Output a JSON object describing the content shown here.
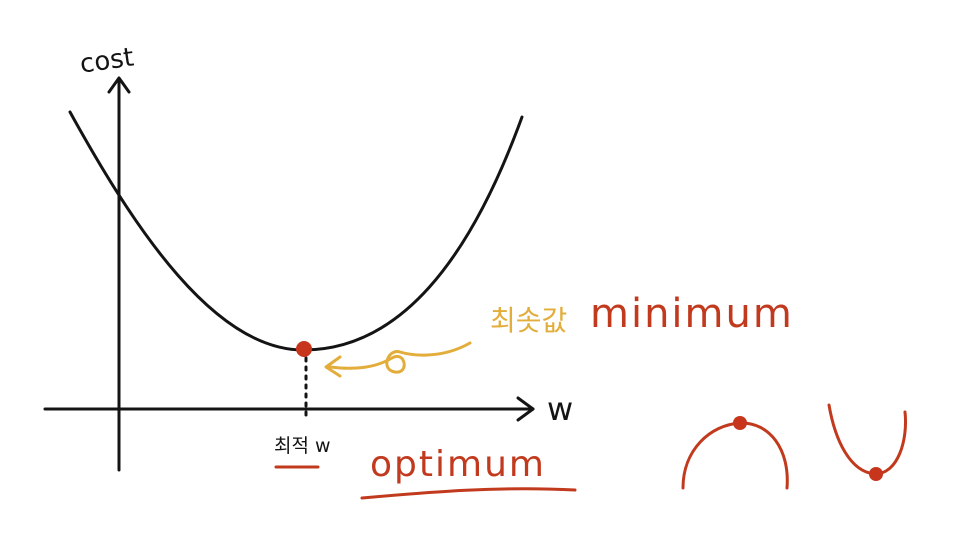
{
  "axes": {
    "y_label": "cost",
    "x_label": "w"
  },
  "annotations": {
    "minimum_korean": "최솟값",
    "minimum_english": "minimum",
    "optimal_w_korean": "최적 w",
    "optimum_english": "optimum"
  },
  "colors": {
    "ink": "#141414",
    "highlight_orange": "#e3ad3b",
    "accent_red": "#c23a1e",
    "point_fill": "#c7351c"
  }
}
